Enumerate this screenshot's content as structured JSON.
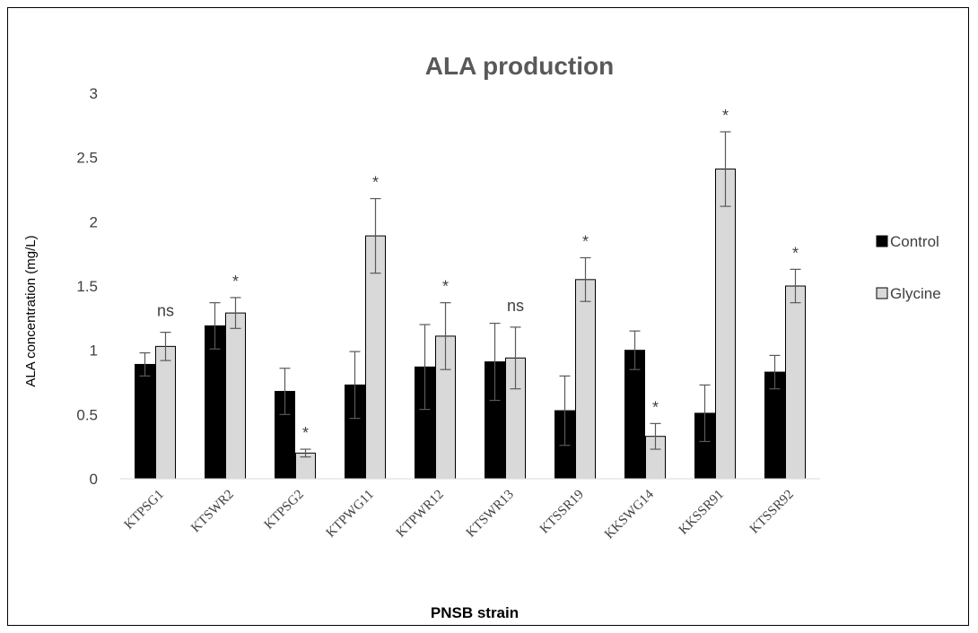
{
  "chart_data": {
    "type": "bar",
    "title": "ALA production",
    "xlabel": "PNSB strain",
    "ylabel": "ALA concentration (mg/L)",
    "ylim": [
      0,
      3
    ],
    "yticks": [
      "0",
      "0.5",
      "1",
      "1.5",
      "2",
      "2.5",
      "3"
    ],
    "grid": false,
    "legend_position": "right",
    "categories": [
      "KTPSG1",
      "KTSWR2",
      "KTPSG2",
      "KTPWG11",
      "KTPWR12",
      "KTSWR13",
      "KTSSR19",
      "KKSWG14",
      "KKSSR91",
      "KTSSR92"
    ],
    "series": [
      {
        "name": "Control",
        "color": "#000000",
        "values": [
          0.89,
          1.19,
          0.68,
          0.73,
          0.87,
          0.91,
          0.53,
          1.0,
          0.51,
          0.83
        ],
        "errors": [
          0.09,
          0.18,
          0.18,
          0.26,
          0.33,
          0.3,
          0.27,
          0.15,
          0.22,
          0.13
        ]
      },
      {
        "name": "Glycine",
        "color": "#d9d9d9",
        "values": [
          1.03,
          1.29,
          0.2,
          1.89,
          1.11,
          0.94,
          1.55,
          0.33,
          2.41,
          1.5
        ],
        "errors": [
          0.11,
          0.12,
          0.03,
          0.29,
          0.26,
          0.24,
          0.17,
          0.1,
          0.29,
          0.13
        ]
      }
    ],
    "annotations": [
      "ns",
      "*",
      "*",
      "*",
      "*",
      "ns",
      "*",
      "*",
      "*",
      "*"
    ]
  }
}
